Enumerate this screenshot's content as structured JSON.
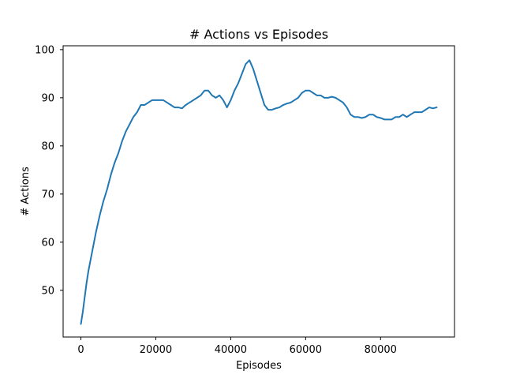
{
  "chart_data": {
    "type": "line",
    "title": "# Actions vs Episodes",
    "xlabel": "Episodes",
    "ylabel": "# Actions",
    "xlim": [
      -4750,
      99750
    ],
    "ylim": [
      40.3,
      100.8
    ],
    "xticks": [
      0,
      20000,
      40000,
      60000,
      80000
    ],
    "yticks": [
      50,
      60,
      70,
      80,
      90,
      100
    ],
    "xtick_labels": [
      "0",
      "20000",
      "40000",
      "60000",
      "80000"
    ],
    "ytick_labels": [
      "50",
      "60",
      "70",
      "80",
      "90",
      "100"
    ],
    "grid": false,
    "legend": "none",
    "series": [
      {
        "color": "#1f77b4",
        "x": [
          0,
          500,
          1000,
          1500,
          2000,
          2500,
          3000,
          3500,
          4000,
          5000,
          6000,
          7000,
          8000,
          9000,
          10000,
          11000,
          12000,
          13000,
          14000,
          15000,
          16000,
          17000,
          18000,
          19000,
          20000,
          21000,
          22000,
          23000,
          24000,
          25000,
          26000,
          27000,
          28000,
          29000,
          30000,
          31000,
          32000,
          33000,
          34000,
          35000,
          36000,
          37000,
          38000,
          39000,
          40000,
          41000,
          42000,
          43000,
          44000,
          45000,
          46000,
          47000,
          48000,
          49000,
          50000,
          51000,
          52000,
          53000,
          54000,
          55000,
          56000,
          57000,
          58000,
          59000,
          60000,
          61000,
          62000,
          63000,
          64000,
          65000,
          66000,
          67000,
          68000,
          69000,
          70000,
          71000,
          72000,
          73000,
          74000,
          75000,
          76000,
          77000,
          78000,
          79000,
          80000,
          81000,
          82000,
          83000,
          84000,
          85000,
          86000,
          87000,
          88000,
          89000,
          90000,
          91000,
          92000,
          93000,
          94000,
          95000
        ],
        "y": [
          43.0,
          45.5,
          48.5,
          51.5,
          54.0,
          56.0,
          58.0,
          60.0,
          62.0,
          65.5,
          68.5,
          71.0,
          74.0,
          76.5,
          78.5,
          81.0,
          83.0,
          84.5,
          86.0,
          87.0,
          88.5,
          88.5,
          89.0,
          89.5,
          89.5,
          89.5,
          89.5,
          89.0,
          88.5,
          88.0,
          88.0,
          87.8,
          88.5,
          89.0,
          89.5,
          90.0,
          90.5,
          91.5,
          91.5,
          90.5,
          90.0,
          90.5,
          89.5,
          88.0,
          89.5,
          91.5,
          93.0,
          95.0,
          97.0,
          97.8,
          96.0,
          93.5,
          91.0,
          88.5,
          87.5,
          87.5,
          87.8,
          88.0,
          88.5,
          88.8,
          89.0,
          89.5,
          90.0,
          91.0,
          91.5,
          91.5,
          91.0,
          90.5,
          90.5,
          90.0,
          90.0,
          90.2,
          90.0,
          89.5,
          89.0,
          88.0,
          86.5,
          86.0,
          86.0,
          85.8,
          86.0,
          86.5,
          86.5,
          86.0,
          85.8,
          85.5,
          85.5,
          85.5,
          86.0,
          86.0,
          86.5,
          86.0,
          86.5,
          87.0,
          87.0,
          87.0,
          87.5,
          88.0,
          87.8,
          88.0
        ]
      }
    ]
  }
}
